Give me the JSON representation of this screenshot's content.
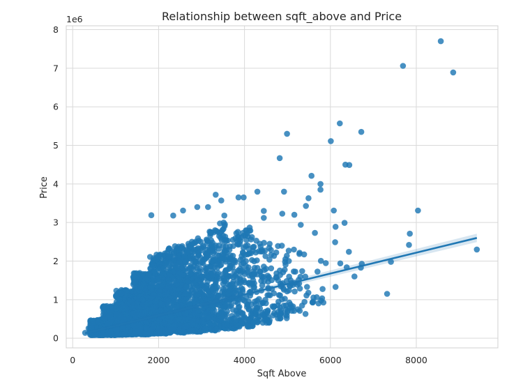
{
  "chart_data": {
    "type": "scatter",
    "title": "Relationship between sqft_above and Price",
    "xlabel": "Sqft Above",
    "ylabel": "Price",
    "y_scale_label": "1e6",
    "xlim": [
      -150,
      9900
    ],
    "ylim": [
      -0.25,
      8.1
    ],
    "x_ticks": [
      0,
      2000,
      4000,
      6000,
      8000
    ],
    "x_tick_labels": [
      "0",
      "2000",
      "4000",
      "6000",
      "8000"
    ],
    "y_ticks": [
      0,
      1,
      2,
      3,
      4,
      5,
      6,
      7,
      8
    ],
    "y_tick_labels": [
      "0",
      "1",
      "2",
      "3",
      "4",
      "5",
      "6",
      "7",
      "8"
    ],
    "grid": true,
    "style": "seaborn-whitegrid",
    "point_color": "#1f77b4",
    "line_color": "#1f77b4",
    "regression": {
      "x_start": 290,
      "x_end": 9410,
      "y_start": 0.13,
      "y_end": 2.6
    },
    "outliers": [
      {
        "x": 8570,
        "y": 7.7
      },
      {
        "x": 7690,
        "y": 7.06
      },
      {
        "x": 8860,
        "y": 6.89
      },
      {
        "x": 6220,
        "y": 5.57
      },
      {
        "x": 6720,
        "y": 5.35
      },
      {
        "x": 4990,
        "y": 5.3
      },
      {
        "x": 6010,
        "y": 5.11
      },
      {
        "x": 4820,
        "y": 4.67
      },
      {
        "x": 6350,
        "y": 4.5
      },
      {
        "x": 6440,
        "y": 4.49
      },
      {
        "x": 5560,
        "y": 4.21
      },
      {
        "x": 5770,
        "y": 4.0
      },
      {
        "x": 5770,
        "y": 3.85
      },
      {
        "x": 3980,
        "y": 3.65
      },
      {
        "x": 3860,
        "y": 3.65
      },
      {
        "x": 4300,
        "y": 3.8
      },
      {
        "x": 4920,
        "y": 3.8
      },
      {
        "x": 3330,
        "y": 3.72
      },
      {
        "x": 5490,
        "y": 3.63
      },
      {
        "x": 5430,
        "y": 3.43
      },
      {
        "x": 6080,
        "y": 3.31
      },
      {
        "x": 8040,
        "y": 3.31
      },
      {
        "x": 6330,
        "y": 2.99
      },
      {
        "x": 6120,
        "y": 2.89
      },
      {
        "x": 7850,
        "y": 2.71
      },
      {
        "x": 7830,
        "y": 2.42
      },
      {
        "x": 6110,
        "y": 2.49
      },
      {
        "x": 6430,
        "y": 2.24
      },
      {
        "x": 9410,
        "y": 2.3
      },
      {
        "x": 7410,
        "y": 1.98
      },
      {
        "x": 6230,
        "y": 1.94
      },
      {
        "x": 6730,
        "y": 1.93
      },
      {
        "x": 6380,
        "y": 1.84
      },
      {
        "x": 6710,
        "y": 1.83
      },
      {
        "x": 6560,
        "y": 1.6
      },
      {
        "x": 6120,
        "y": 1.33
      },
      {
        "x": 7320,
        "y": 1.15
      },
      {
        "x": 5640,
        "y": 2.73
      },
      {
        "x": 5160,
        "y": 3.2
      },
      {
        "x": 4880,
        "y": 3.23
      },
      {
        "x": 4450,
        "y": 3.3
      },
      {
        "x": 4450,
        "y": 3.12
      },
      {
        "x": 2340,
        "y": 3.18
      },
      {
        "x": 2570,
        "y": 3.31
      },
      {
        "x": 2900,
        "y": 3.4
      },
      {
        "x": 3150,
        "y": 3.4
      },
      {
        "x": 3460,
        "y": 3.57
      },
      {
        "x": 1830,
        "y": 3.19
      },
      {
        "x": 5600,
        "y": 0.95
      },
      {
        "x": 5420,
        "y": 0.63
      },
      {
        "x": 4830,
        "y": 0.51
      },
      {
        "x": 4420,
        "y": 0.61
      },
      {
        "x": 290,
        "y": 0.14
      },
      {
        "x": 370,
        "y": 0.26
      },
      {
        "x": 3530,
        "y": 3.18
      },
      {
        "x": 4120,
        "y": 2.87
      },
      {
        "x": 5310,
        "y": 2.94
      }
    ],
    "bulk_bands": [
      {
        "x_from": 400,
        "x_to": 700,
        "y_low": 0.08,
        "y_high": 0.5,
        "count": 140
      },
      {
        "x_from": 700,
        "x_to": 1000,
        "y_low": 0.08,
        "y_high": 0.85,
        "count": 260
      },
      {
        "x_from": 1000,
        "x_to": 1400,
        "y_low": 0.09,
        "y_high": 1.25,
        "count": 420
      },
      {
        "x_from": 1400,
        "x_to": 1800,
        "y_low": 0.1,
        "y_high": 1.7,
        "count": 440
      },
      {
        "x_from": 1800,
        "x_to": 2200,
        "y_low": 0.12,
        "y_high": 2.2,
        "count": 420
      },
      {
        "x_from": 2200,
        "x_to": 2600,
        "y_low": 0.14,
        "y_high": 2.4,
        "count": 380
      },
      {
        "x_from": 2600,
        "x_to": 3000,
        "y_low": 0.17,
        "y_high": 2.6,
        "count": 320
      },
      {
        "x_from": 3000,
        "x_to": 3400,
        "y_low": 0.2,
        "y_high": 2.8,
        "count": 260
      },
      {
        "x_from": 3400,
        "x_to": 3800,
        "y_low": 0.25,
        "y_high": 3.0,
        "count": 200
      },
      {
        "x_from": 3800,
        "x_to": 4200,
        "y_low": 0.3,
        "y_high": 2.8,
        "count": 150
      },
      {
        "x_from": 4200,
        "x_to": 4600,
        "y_low": 0.4,
        "y_high": 2.6,
        "count": 95
      },
      {
        "x_from": 4600,
        "x_to": 5000,
        "y_low": 0.5,
        "y_high": 2.4,
        "count": 60
      },
      {
        "x_from": 5000,
        "x_to": 5400,
        "y_low": 0.7,
        "y_high": 2.3,
        "count": 35
      },
      {
        "x_from": 5400,
        "x_to": 5900,
        "y_low": 0.9,
        "y_high": 2.1,
        "count": 16
      }
    ]
  }
}
